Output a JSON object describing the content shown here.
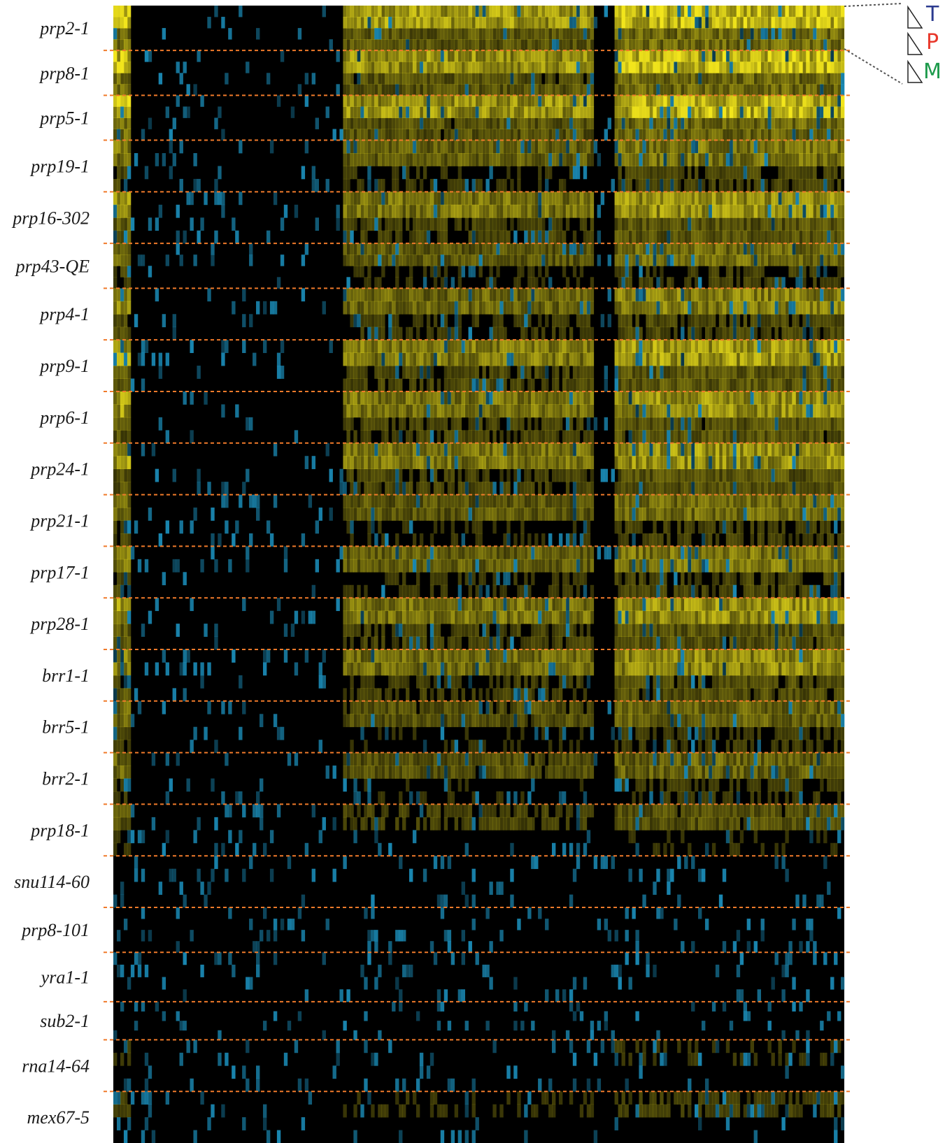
{
  "chart_data": {
    "type": "heatmap",
    "title": "",
    "rows": [
      "prp2-1",
      "prp8-1",
      "prp5-1",
      "prp19-1",
      "prp16-302",
      "prp43-QE",
      "prp4-1",
      "prp9-1",
      "prp6-1",
      "prp24-1",
      "prp21-1",
      "prp17-1",
      "prp28-1",
      "brr1-1",
      "brr5-1",
      "brr2-1",
      "prp18-1",
      "snu114-60",
      "prp8-101",
      "yra1-1",
      "sub2-1",
      "rna14-64",
      "mex67-5"
    ],
    "row_weights": [
      1.0,
      1.0,
      1.0,
      1.15,
      1.15,
      1.0,
      1.15,
      1.15,
      1.15,
      1.15,
      1.15,
      1.15,
      1.15,
      1.15,
      1.15,
      1.15,
      1.15,
      1.15,
      1.0,
      1.1,
      0.85,
      1.15,
      1.15
    ],
    "row_intensity": [
      1.0,
      0.95,
      0.95,
      0.6,
      0.75,
      0.55,
      0.65,
      0.8,
      0.75,
      0.75,
      0.55,
      0.6,
      0.75,
      0.7,
      0.5,
      0.5,
      0.4,
      0.2,
      0.12,
      0.15,
      0.1,
      0.25,
      0.3
    ],
    "colors": {
      "background": "#000000",
      "positive": "#f2e51c",
      "negative": "#1e9ecf",
      "separator": "#f07a2a"
    },
    "legend": {
      "items": [
        {
          "label": "T",
          "color": "#2b3a8f"
        },
        {
          "label": "P",
          "color": "#e8382b"
        },
        {
          "label": "M",
          "color": "#1c9a4b"
        }
      ]
    }
  }
}
